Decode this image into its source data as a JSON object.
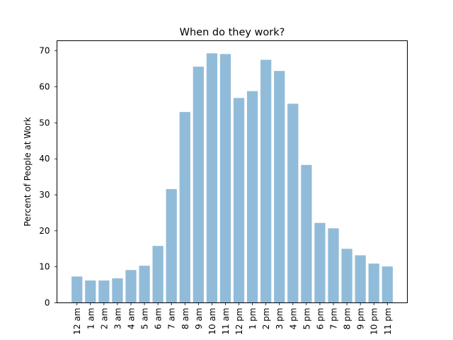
{
  "chart_data": {
    "type": "bar",
    "title": "When do they work?",
    "xlabel": "",
    "ylabel": "Percent of People at Work",
    "categories": [
      "12 am",
      "1 am",
      "2 am",
      "3 am",
      "4 am",
      "5 am",
      "6 am",
      "7 am",
      "8 am",
      "9 am",
      "10 am",
      "11 am",
      "12 pm",
      "1 pm",
      "2 pm",
      "3 pm",
      "4 pm",
      "5 pm",
      "6 pm",
      "7 pm",
      "8 pm",
      "9 pm",
      "10 pm",
      "11 pm"
    ],
    "values": [
      7.3,
      6.2,
      6.2,
      6.8,
      9.1,
      10.3,
      15.8,
      31.6,
      53.0,
      65.6,
      69.3,
      69.1,
      56.9,
      58.8,
      67.5,
      64.4,
      55.3,
      38.3,
      22.2,
      20.7,
      15.0,
      13.2,
      10.9,
      10.1
    ],
    "yticks": [
      0,
      10,
      20,
      30,
      40,
      50,
      60,
      70
    ],
    "ylim": [
      0,
      72.8
    ],
    "bar_color": "#91bcd9",
    "grid": false,
    "legend": "none"
  }
}
